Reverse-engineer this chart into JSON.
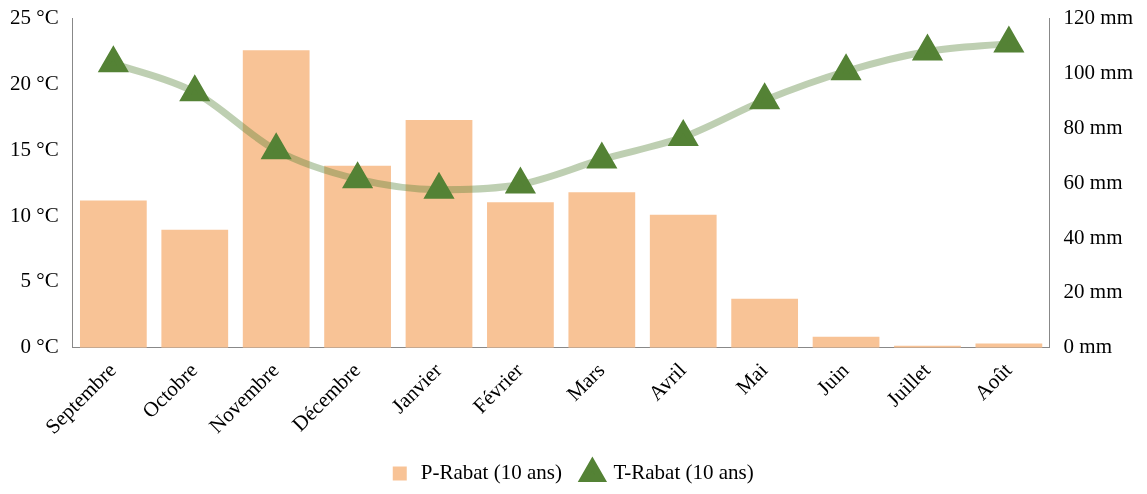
{
  "chart_data": {
    "type": "bar",
    "categories": [
      "Septembre",
      "Octobre",
      "Novembre",
      "Décembre",
      "Janvier",
      "Février",
      "Mars",
      "Avril",
      "Mai",
      "Juin",
      "Juillet",
      "Août"
    ],
    "series": [
      {
        "name": "P-Rabat (10 ans)",
        "axis": "y2",
        "color": "#f8c396",
        "values": [
          53.7,
          43,
          108.5,
          66.3,
          83,
          53,
          56.7,
          48.5,
          17.8,
          4,
          0.7,
          1.5
        ]
      },
      {
        "name": "T-Rabat (10 ans)",
        "type": "line",
        "color": "#548235",
        "marker": "triangle",
        "values": [
          21.6,
          19.4,
          15.0,
          12.8,
          12.0,
          12.4,
          14.3,
          16.0,
          18.8,
          21.0,
          22.5,
          23.1
        ]
      }
    ],
    "ylim": [
      0,
      25
    ],
    "yticks": [
      {
        "value": 0,
        "label": "0 °C"
      },
      {
        "value": 5,
        "label": "5 °C"
      },
      {
        "value": 10,
        "label": "10 °C"
      },
      {
        "value": 15,
        "label": "15 °C"
      },
      {
        "value": 20,
        "label": "20 °C"
      },
      {
        "value": 25,
        "label": "25 °C"
      }
    ],
    "y2lim": [
      0,
      120
    ],
    "y2ticks": [
      {
        "value": 0,
        "label": "0 mm"
      },
      {
        "value": 20,
        "label": "20 mm"
      },
      {
        "value": 40,
        "label": "40 mm"
      },
      {
        "value": 60,
        "label": "60 mm"
      },
      {
        "value": 80,
        "label": "80 mm"
      },
      {
        "value": 100,
        "label": "100 mm"
      },
      {
        "value": 120,
        "label": "120 mm"
      }
    ],
    "grid": false,
    "legend": "bottom"
  }
}
